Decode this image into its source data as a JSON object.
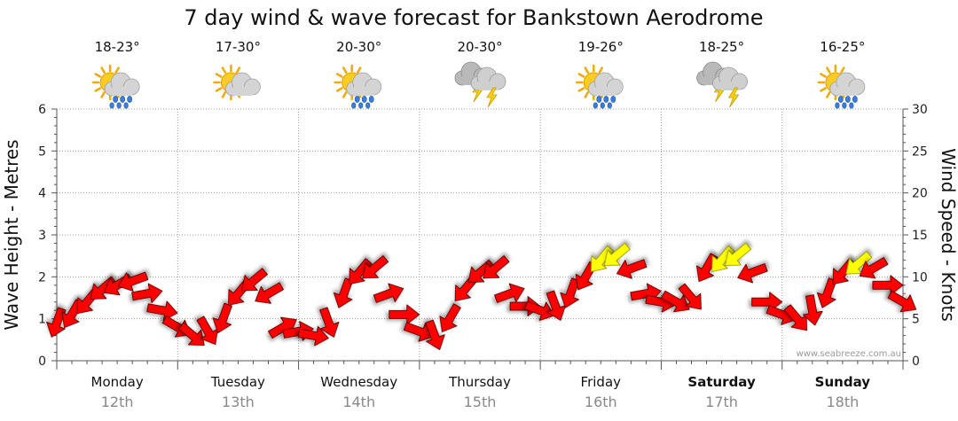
{
  "chart_data": {
    "type": "line",
    "title": "7 day wind & wave forecast for Bankstown Aerodrome",
    "ylabel_left": "Wave Height - Metres",
    "ylabel_right": "Wind Speed - Knots",
    "ylim_left": [
      0,
      6
    ],
    "ylim_right": [
      0,
      30
    ],
    "yticks_left": [
      "0",
      "1",
      "2",
      "3",
      "4",
      "5",
      "6"
    ],
    "yticks_right": [
      "0",
      "5",
      "10",
      "15",
      "20",
      "25",
      "30"
    ],
    "days": [
      {
        "day": "Monday",
        "date": "12th",
        "temp": "18-23°",
        "icon": "sun-cloud-rain-icon",
        "bold": false
      },
      {
        "day": "Tuesday",
        "date": "13th",
        "temp": "17-30°",
        "icon": "sun-cloud-icon",
        "bold": false
      },
      {
        "day": "Wednesday",
        "date": "14th",
        "temp": "20-30°",
        "icon": "sun-cloud-rain-icon",
        "bold": false
      },
      {
        "day": "Thursday",
        "date": "15th",
        "temp": "20-30°",
        "icon": "thunderstorm-icon",
        "bold": false
      },
      {
        "day": "Friday",
        "date": "16th",
        "temp": "19-26°",
        "icon": "sun-cloud-rain-icon",
        "bold": false
      },
      {
        "day": "Saturday",
        "date": "17th",
        "temp": "18-25°",
        "icon": "thunderstorm-icon",
        "bold": true
      },
      {
        "day": "Sunday",
        "date": "18th",
        "temp": "16-25°",
        "icon": "sun-cloud-rain-icon",
        "bold": true
      }
    ],
    "series": [
      {
        "name": "Wind Speed (knots)",
        "time_hours": [
          0,
          3,
          6,
          9,
          12,
          15,
          18,
          21,
          24,
          27,
          30,
          33,
          36,
          39,
          42,
          45,
          48,
          51,
          54,
          57,
          60,
          63,
          66,
          69,
          72,
          75,
          78,
          81,
          84,
          87,
          90,
          93,
          96,
          99,
          102,
          105,
          108,
          111,
          114,
          117,
          120,
          123,
          126,
          129,
          132,
          135,
          138,
          141,
          144,
          147,
          150,
          153,
          156,
          159,
          162,
          165,
          168
        ],
        "values": [
          4.5,
          5.5,
          7,
          8.5,
          9,
          9.5,
          8,
          6,
          4,
          3,
          3.5,
          5,
          8,
          9.5,
          8,
          4,
          3.5,
          3,
          4.5,
          8,
          10.5,
          11,
          8,
          5.5,
          3.5,
          3,
          5,
          8.5,
          10.5,
          11,
          8,
          6.5,
          6,
          6.5,
          8,
          10,
          12,
          12.5,
          11,
          8,
          7,
          7,
          7.5,
          11,
          12,
          12.5,
          10.5,
          7,
          5.5,
          5,
          6,
          8,
          10.5,
          11.5,
          11,
          9,
          7
        ],
        "direction_deg": [
          200,
          210,
          220,
          230,
          240,
          250,
          80,
          100,
          120,
          130,
          150,
          200,
          220,
          230,
          240,
          60,
          80,
          100,
          160,
          200,
          220,
          230,
          70,
          90,
          110,
          160,
          210,
          220,
          230,
          230,
          70,
          90,
          110,
          160,
          200,
          210,
          220,
          230,
          250,
          80,
          100,
          120,
          140,
          210,
          220,
          230,
          250,
          90,
          110,
          140,
          170,
          200,
          220,
          230,
          240,
          90,
          120
        ],
        "color_rule": "yellow when speed >= 11.5 knots, otherwise red"
      }
    ],
    "watermark": "www.seabreeze.com.au"
  }
}
